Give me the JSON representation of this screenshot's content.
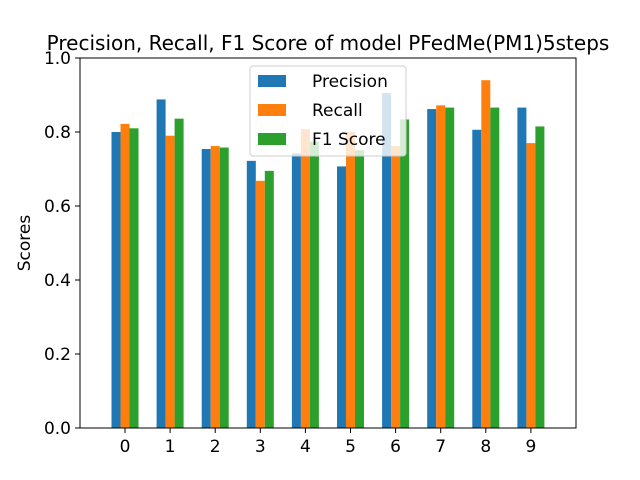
{
  "chart_data": {
    "type": "bar",
    "title": "Precision, Recall, F1 Score of model PFedMe(PM1)5steps",
    "xlabel": "",
    "ylabel": "Scores",
    "ylim": [
      0,
      1.0
    ],
    "yticks": [
      "0.0",
      "0.2",
      "0.4",
      "0.6",
      "0.8",
      "1.0"
    ],
    "categories": [
      "0",
      "1",
      "2",
      "3",
      "4",
      "5",
      "6",
      "7",
      "8",
      "9"
    ],
    "series": [
      {
        "name": "Precision",
        "color": "#1f77b4",
        "values": [
          0.8,
          0.888,
          0.754,
          0.722,
          0.742,
          0.707,
          0.905,
          0.862,
          0.806,
          0.866
        ]
      },
      {
        "name": "Recall",
        "color": "#ff7f0e",
        "values": [
          0.822,
          0.79,
          0.762,
          0.668,
          0.808,
          0.8,
          0.762,
          0.872,
          0.94,
          0.77
        ]
      },
      {
        "name": "F1 Score",
        "color": "#2ca02c",
        "values": [
          0.81,
          0.836,
          0.758,
          0.695,
          0.774,
          0.751,
          0.834,
          0.866,
          0.866,
          0.815
        ]
      }
    ],
    "legend_position": "top-center",
    "grid": false
  }
}
